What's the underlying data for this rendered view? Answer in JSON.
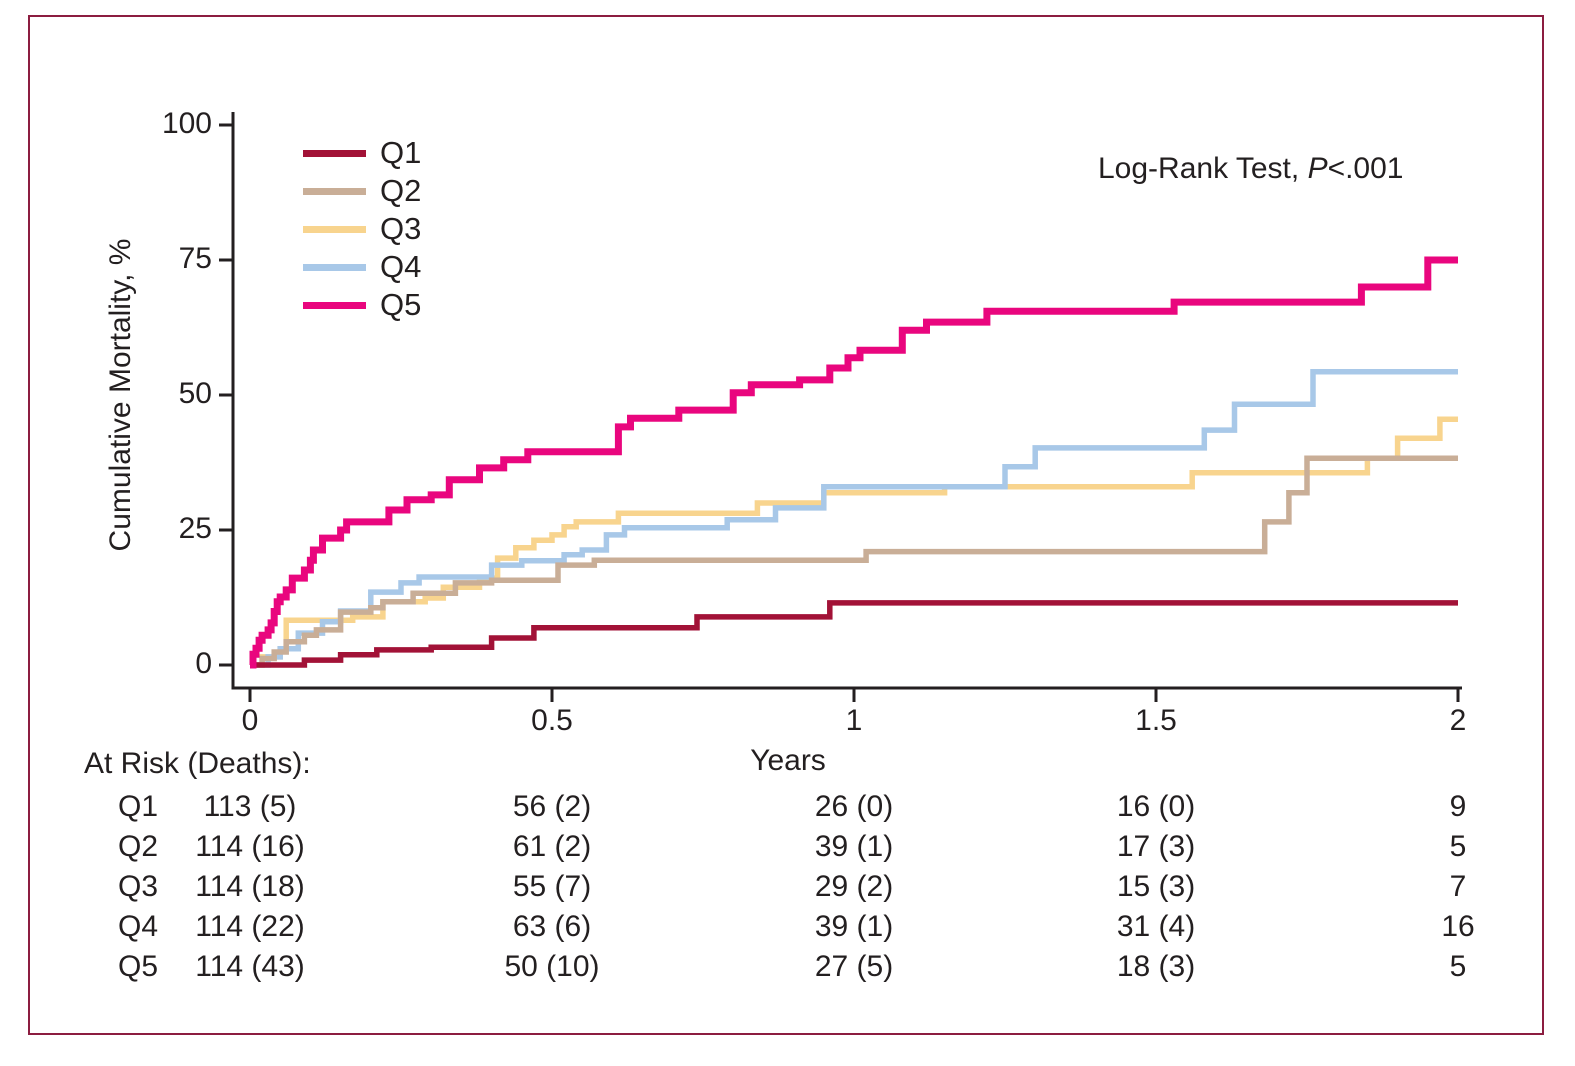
{
  "figure": {
    "annotation": {
      "prefix": "Log-Rank Test, ",
      "p_symbol": "P",
      "suffix": "<.001"
    },
    "at_risk": {
      "header": "At Risk (Deaths):",
      "rows": [
        {
          "label": "Q1",
          "values": [
            "113 (5)",
            "56 (2)",
            "26 (0)",
            "16 (0)",
            "9"
          ]
        },
        {
          "label": "Q2",
          "values": [
            "114 (16)",
            "61 (2)",
            "39 (1)",
            "17 (3)",
            "5"
          ]
        },
        {
          "label": "Q3",
          "values": [
            "114 (18)",
            "55 (7)",
            "29 (2)",
            "15 (3)",
            "7"
          ]
        },
        {
          "label": "Q4",
          "values": [
            "114 (22)",
            "63 (6)",
            "39 (1)",
            "31 (4)",
            "16"
          ]
        },
        {
          "label": "Q5",
          "values": [
            "114 (43)",
            "50 (10)",
            "27 (5)",
            "18 (3)",
            "5"
          ]
        }
      ]
    }
  },
  "colors": {
    "frame": "#8C1D40",
    "axis_text": "#231F20"
  },
  "chart_data": {
    "type": "line",
    "subtype": "kaplan-meier-step",
    "title": "",
    "xlabel": "Years",
    "ylabel": "Cumulative Mortality, %",
    "xlim": [
      0,
      2
    ],
    "ylim": [
      0,
      100
    ],
    "x_ticks": [
      0,
      0.5,
      1,
      1.5,
      2
    ],
    "y_ticks": [
      0,
      25,
      50,
      75,
      100
    ],
    "grid": false,
    "legend_position": "upper-left-inside",
    "annotation": "Log-Rank Test, P<.001",
    "series": [
      {
        "name": "Q1",
        "color": "#A21237",
        "steps": [
          [
            0,
            0
          ],
          [
            0.09,
            0.9
          ],
          [
            0.15,
            1.9
          ],
          [
            0.21,
            2.8
          ],
          [
            0.3,
            3.3
          ],
          [
            0.4,
            5.0
          ],
          [
            0.47,
            6.9
          ],
          [
            0.74,
            8.9
          ],
          [
            0.96,
            11.5
          ],
          [
            2,
            11.5
          ]
        ]
      },
      {
        "name": "Q2",
        "color": "#C9AE97",
        "steps": [
          [
            0,
            0
          ],
          [
            0.02,
            1.2
          ],
          [
            0.04,
            2.4
          ],
          [
            0.06,
            4.3
          ],
          [
            0.09,
            5.5
          ],
          [
            0.11,
            6.5
          ],
          [
            0.15,
            9.8
          ],
          [
            0.2,
            10.6
          ],
          [
            0.22,
            11.7
          ],
          [
            0.27,
            13.3
          ],
          [
            0.34,
            15.2
          ],
          [
            0.4,
            15.7
          ],
          [
            0.51,
            18.5
          ],
          [
            0.57,
            19.4
          ],
          [
            1.02,
            21.0
          ],
          [
            1.68,
            26.5
          ],
          [
            1.72,
            31.9
          ],
          [
            1.75,
            38.3
          ],
          [
            2,
            38.3
          ]
        ]
      },
      {
        "name": "Q3",
        "color": "#F8D48E",
        "steps": [
          [
            0,
            0
          ],
          [
            0.02,
            1.5
          ],
          [
            0.05,
            3.0
          ],
          [
            0.06,
            8.3
          ],
          [
            0.17,
            8.9
          ],
          [
            0.22,
            11.7
          ],
          [
            0.29,
            12.4
          ],
          [
            0.32,
            14.4
          ],
          [
            0.38,
            16.1
          ],
          [
            0.41,
            19.8
          ],
          [
            0.44,
            21.7
          ],
          [
            0.47,
            23.1
          ],
          [
            0.5,
            24.1
          ],
          [
            0.52,
            25.6
          ],
          [
            0.54,
            26.5
          ],
          [
            0.61,
            28.1
          ],
          [
            0.84,
            30.0
          ],
          [
            0.95,
            31.9
          ],
          [
            1.15,
            33.0
          ],
          [
            1.56,
            35.6
          ],
          [
            1.85,
            38.3
          ],
          [
            1.9,
            42.0
          ],
          [
            1.97,
            45.5
          ],
          [
            2,
            45.5
          ]
        ]
      },
      {
        "name": "Q4",
        "color": "#A8C8E8",
        "steps": [
          [
            0,
            0
          ],
          [
            0.03,
            1.5
          ],
          [
            0.05,
            3.0
          ],
          [
            0.08,
            5.9
          ],
          [
            0.12,
            8.0
          ],
          [
            0.15,
            10.0
          ],
          [
            0.2,
            13.5
          ],
          [
            0.25,
            15.2
          ],
          [
            0.28,
            16.3
          ],
          [
            0.4,
            18.5
          ],
          [
            0.45,
            19.3
          ],
          [
            0.52,
            20.4
          ],
          [
            0.55,
            21.3
          ],
          [
            0.59,
            24.1
          ],
          [
            0.62,
            25.4
          ],
          [
            0.79,
            26.9
          ],
          [
            0.87,
            29.1
          ],
          [
            0.95,
            33.0
          ],
          [
            1.25,
            36.7
          ],
          [
            1.3,
            40.2
          ],
          [
            1.58,
            43.5
          ],
          [
            1.63,
            48.3
          ],
          [
            1.76,
            54.3
          ],
          [
            2,
            54.3
          ]
        ]
      },
      {
        "name": "Q5",
        "color": "#E9067E",
        "steps": [
          [
            0,
            0
          ],
          [
            0.005,
            2.0
          ],
          [
            0.01,
            3.1
          ],
          [
            0.015,
            4.6
          ],
          [
            0.02,
            5.5
          ],
          [
            0.03,
            6.5
          ],
          [
            0.035,
            7.8
          ],
          [
            0.04,
            9.9
          ],
          [
            0.045,
            11.7
          ],
          [
            0.05,
            12.6
          ],
          [
            0.06,
            13.9
          ],
          [
            0.07,
            16.1
          ],
          [
            0.09,
            17.6
          ],
          [
            0.1,
            19.4
          ],
          [
            0.105,
            21.3
          ],
          [
            0.12,
            23.5
          ],
          [
            0.15,
            25.0
          ],
          [
            0.16,
            26.5
          ],
          [
            0.23,
            28.7
          ],
          [
            0.26,
            30.6
          ],
          [
            0.3,
            31.5
          ],
          [
            0.33,
            34.3
          ],
          [
            0.38,
            36.5
          ],
          [
            0.42,
            38.0
          ],
          [
            0.46,
            39.5
          ],
          [
            0.61,
            44.1
          ],
          [
            0.63,
            45.7
          ],
          [
            0.71,
            47.2
          ],
          [
            0.8,
            50.4
          ],
          [
            0.83,
            51.9
          ],
          [
            0.91,
            52.8
          ],
          [
            0.96,
            55.0
          ],
          [
            0.99,
            56.9
          ],
          [
            1.01,
            58.3
          ],
          [
            1.08,
            62.0
          ],
          [
            1.12,
            63.5
          ],
          [
            1.22,
            65.5
          ],
          [
            1.53,
            67.2
          ],
          [
            1.84,
            70.0
          ],
          [
            1.95,
            75.0
          ],
          [
            2,
            75.0
          ]
        ]
      }
    ]
  }
}
